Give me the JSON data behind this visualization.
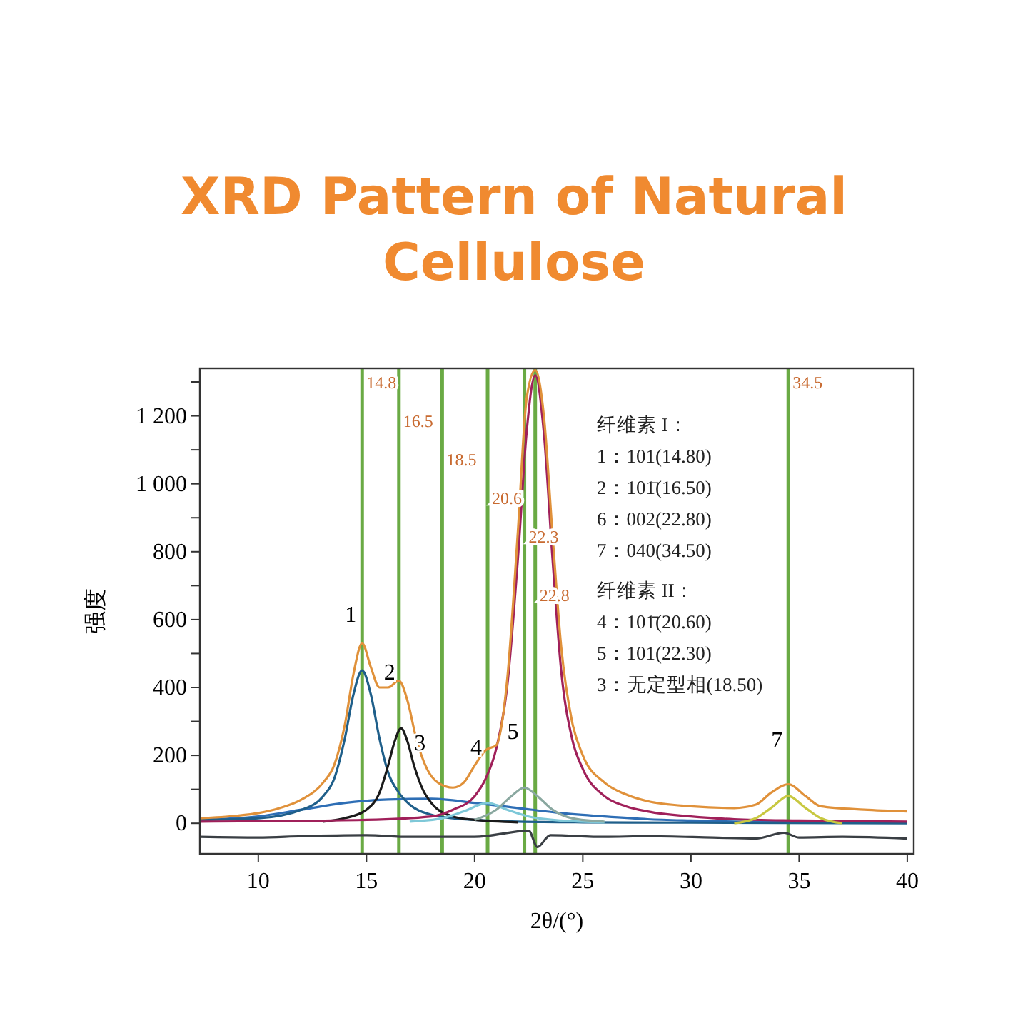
{
  "chart_data": {
    "type": "line",
    "title": "XRD Pattern of Natural Cellulose",
    "xlabel": "2θ/(°)",
    "ylabel": "强度",
    "xlim": [
      7.3,
      40.3
    ],
    "ylim": [
      -90,
      1340
    ],
    "xticks": [
      10,
      15,
      20,
      25,
      30,
      35,
      40
    ],
    "yticks": [
      0,
      {
        "value": 100,
        "label": null
      },
      200,
      {
        "value": 300,
        "label": null
      },
      400,
      {
        "value": 500,
        "label": null
      },
      600,
      {
        "value": 700,
        "label": null
      },
      800,
      {
        "value": 900,
        "label": null
      },
      {
        "value": 1000,
        "label": "1 000"
      },
      {
        "value": 1100,
        "label": null
      },
      {
        "value": 1200,
        "label": "1 200"
      },
      {
        "value": 1300,
        "label": null
      }
    ],
    "marker": "none",
    "line_style": "solid",
    "series": [
      {
        "color": "#3a3f44",
        "x": [
          7.3,
          10,
          12,
          15,
          17,
          20,
          22.5,
          22.9,
          23.5,
          26,
          28,
          31,
          33,
          34.3,
          35,
          37,
          40
        ],
        "values": [
          -40,
          -42,
          -38,
          -35,
          -40,
          -40,
          -22,
          -70,
          -35,
          -40,
          -38,
          -42,
          -45,
          -28,
          -42,
          -40,
          -45
        ]
      },
      {
        "color": "#2e6eb5",
        "x": [
          7.3,
          10,
          12,
          14,
          16,
          18,
          20,
          22,
          24,
          26,
          28,
          30,
          35,
          40
        ],
        "values": [
          10,
          20,
          40,
          60,
          70,
          72,
          60,
          45,
          30,
          20,
          12,
          8,
          3,
          2
        ]
      },
      {
        "color": "#1f5f8a",
        "x": [
          7.3,
          10,
          12,
          13,
          13.5,
          14,
          14.4,
          14.8,
          15.2,
          15.6,
          16,
          16.5,
          17,
          18,
          19,
          20,
          22,
          25,
          30,
          40
        ],
        "values": [
          10,
          15,
          40,
          80,
          130,
          250,
          380,
          450,
          380,
          250,
          150,
          90,
          55,
          25,
          15,
          10,
          5,
          3,
          2,
          0
        ]
      },
      {
        "color": "#1a1a1a",
        "x": [
          13,
          14,
          15,
          15.6,
          16,
          16.3,
          16.6,
          16.9,
          17.2,
          17.6,
          18,
          19,
          20,
          22
        ],
        "values": [
          5,
          15,
          40,
          90,
          170,
          240,
          280,
          240,
          170,
          100,
          60,
          20,
          10,
          3
        ]
      },
      {
        "color": "#7ec8d8",
        "x": [
          17,
          18.5,
          19.5,
          20.6,
          21.5,
          22.5,
          24,
          26
        ],
        "values": [
          5,
          15,
          35,
          60,
          40,
          20,
          8,
          3
        ]
      },
      {
        "color": "#8aa8a0",
        "x": [
          20,
          21,
          21.7,
          22.3,
          22.9,
          23.6,
          24.5,
          26
        ],
        "values": [
          10,
          40,
          80,
          105,
          80,
          40,
          15,
          5
        ]
      },
      {
        "color": "#a0205a",
        "x": [
          7.3,
          15,
          18,
          19,
          20,
          20.5,
          21,
          21.5,
          22,
          22.4,
          22.8,
          23.2,
          23.6,
          24,
          24.5,
          25,
          26,
          27,
          28,
          30,
          32,
          35,
          40
        ],
        "values": [
          5,
          10,
          20,
          40,
          80,
          130,
          220,
          400,
          780,
          1150,
          1320,
          1150,
          780,
          450,
          250,
          160,
          80,
          50,
          35,
          20,
          12,
          8,
          5
        ]
      },
      {
        "color": "#c8c840",
        "x": [
          32,
          33,
          33.7,
          34.5,
          35.3,
          36,
          37
        ],
        "values": [
          0,
          15,
          45,
          80,
          45,
          15,
          0
        ]
      },
      {
        "color": "#e0913a",
        "x": [
          7.3,
          9,
          10,
          11,
          12,
          13,
          13.5,
          14,
          14.4,
          14.8,
          15.2,
          15.6,
          16,
          16.5,
          16.9,
          17.3,
          17.8,
          18.3,
          19,
          19.5,
          20,
          20.5,
          21,
          21.5,
          22,
          22.4,
          22.8,
          23.2,
          23.6,
          24,
          24.5,
          25,
          26,
          27,
          28,
          30,
          32,
          33,
          33.7,
          34.5,
          35.3,
          36,
          38,
          40
        ],
        "values": [
          15,
          22,
          30,
          45,
          70,
          120,
          170,
          290,
          440,
          530,
          460,
          400,
          400,
          420,
          360,
          250,
          160,
          120,
          105,
          120,
          170,
          215,
          230,
          420,
          860,
          1250,
          1335,
          1200,
          850,
          520,
          300,
          200,
          120,
          85,
          65,
          50,
          45,
          55,
          90,
          115,
          80,
          50,
          40,
          35
        ]
      }
    ],
    "ref_lines": [
      {
        "axis": "x",
        "value": 14.8,
        "label": "14.8",
        "color": "#6aaa44"
      },
      {
        "axis": "x",
        "value": 16.5,
        "label": "16.5",
        "color": "#6aaa44"
      },
      {
        "axis": "x",
        "value": 18.5,
        "label": "18.5",
        "color": "#6aaa44"
      },
      {
        "axis": "x",
        "value": 20.6,
        "label": "20.6",
        "color": "#6aaa44"
      },
      {
        "axis": "x",
        "value": 22.3,
        "label": "22.3",
        "color": "#6aaa44"
      },
      {
        "axis": "x",
        "value": 22.8,
        "label": "22.8",
        "color": "#6aaa44"
      },
      {
        "axis": "x",
        "value": 34.5,
        "label": "34.5",
        "color": "#6aaa44"
      }
    ],
    "annotations": [
      {
        "text": "1",
        "x": 14.8,
        "y": 450
      },
      {
        "text": "2",
        "x": 16.6,
        "y": 280
      },
      {
        "text": "3",
        "x": 18,
        "y": 72
      },
      {
        "text": "4",
        "x": 20.6,
        "y": 60
      },
      {
        "text": "5",
        "x": 22.3,
        "y": 105
      },
      {
        "text": "7",
        "x": 34.5,
        "y": 80
      },
      "纤维素 I：",
      "1：101(14.80)",
      "2：101̄(16.50)",
      "6：002(22.80)",
      "7：040(34.50)",
      "纤维素 II：",
      "4：101̄(20.60)",
      "5：101(22.30)",
      "3：无定型相(18.50)"
    ]
  }
}
